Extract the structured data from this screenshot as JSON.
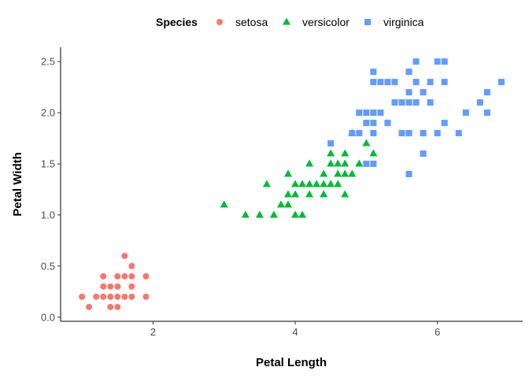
{
  "chart_data": {
    "type": "scatter",
    "xlabel": "Petal Length",
    "ylabel": "Petal Width",
    "xlim": [
      0.7,
      7.2
    ],
    "ylim": [
      -0.04,
      2.64
    ],
    "xticks": [
      2,
      4,
      6
    ],
    "yticks": [
      0.0,
      0.5,
      1.0,
      1.5,
      2.0,
      2.5
    ],
    "xtick_labels": [
      "2",
      "4",
      "6"
    ],
    "ytick_labels": [
      "0.0",
      "0.5",
      "1.0",
      "1.5",
      "2.0",
      "2.5"
    ],
    "grid": false,
    "legend": {
      "title": "Species",
      "position": "top"
    },
    "series": [
      {
        "name": "setosa",
        "color": "#F8766D",
        "marker": "circle",
        "points": [
          [
            1.0,
            0.2
          ],
          [
            1.1,
            0.1
          ],
          [
            1.2,
            0.2
          ],
          [
            1.3,
            0.2
          ],
          [
            1.3,
            0.3
          ],
          [
            1.3,
            0.4
          ],
          [
            1.4,
            0.1
          ],
          [
            1.4,
            0.2
          ],
          [
            1.4,
            0.3
          ],
          [
            1.5,
            0.1
          ],
          [
            1.5,
            0.2
          ],
          [
            1.5,
            0.3
          ],
          [
            1.5,
            0.4
          ],
          [
            1.6,
            0.2
          ],
          [
            1.6,
            0.4
          ],
          [
            1.6,
            0.6
          ],
          [
            1.7,
            0.2
          ],
          [
            1.7,
            0.3
          ],
          [
            1.7,
            0.4
          ],
          [
            1.7,
            0.5
          ],
          [
            1.9,
            0.2
          ],
          [
            1.9,
            0.4
          ]
        ]
      },
      {
        "name": "versicolor",
        "color": "#00BA38",
        "marker": "triangle",
        "points": [
          [
            3.0,
            1.1
          ],
          [
            3.3,
            1.0
          ],
          [
            3.5,
            1.0
          ],
          [
            3.6,
            1.3
          ],
          [
            3.7,
            1.0
          ],
          [
            3.8,
            1.1
          ],
          [
            3.9,
            1.1
          ],
          [
            3.9,
            1.2
          ],
          [
            3.9,
            1.4
          ],
          [
            4.0,
            1.0
          ],
          [
            4.0,
            1.2
          ],
          [
            4.0,
            1.3
          ],
          [
            4.1,
            1.0
          ],
          [
            4.1,
            1.3
          ],
          [
            4.2,
            1.2
          ],
          [
            4.2,
            1.3
          ],
          [
            4.2,
            1.5
          ],
          [
            4.3,
            1.3
          ],
          [
            4.4,
            1.2
          ],
          [
            4.4,
            1.3
          ],
          [
            4.4,
            1.4
          ],
          [
            4.5,
            1.3
          ],
          [
            4.5,
            1.5
          ],
          [
            4.5,
            1.6
          ],
          [
            4.6,
            1.3
          ],
          [
            4.6,
            1.4
          ],
          [
            4.6,
            1.5
          ],
          [
            4.7,
            1.2
          ],
          [
            4.7,
            1.4
          ],
          [
            4.7,
            1.5
          ],
          [
            4.7,
            1.6
          ],
          [
            4.8,
            1.4
          ],
          [
            4.8,
            1.8
          ],
          [
            4.9,
            1.5
          ],
          [
            5.0,
            1.7
          ],
          [
            5.1,
            1.6
          ]
        ]
      },
      {
        "name": "virginica",
        "color": "#619CFF",
        "marker": "square",
        "points": [
          [
            4.5,
            1.7
          ],
          [
            4.8,
            1.8
          ],
          [
            4.9,
            1.8
          ],
          [
            4.9,
            2.0
          ],
          [
            5.0,
            1.5
          ],
          [
            5.0,
            1.9
          ],
          [
            5.0,
            2.0
          ],
          [
            5.1,
            1.5
          ],
          [
            5.1,
            1.8
          ],
          [
            5.1,
            1.9
          ],
          [
            5.1,
            2.0
          ],
          [
            5.1,
            2.3
          ],
          [
            5.1,
            2.4
          ],
          [
            5.2,
            2.0
          ],
          [
            5.2,
            2.3
          ],
          [
            5.3,
            1.9
          ],
          [
            5.3,
            2.3
          ],
          [
            5.4,
            2.1
          ],
          [
            5.4,
            2.3
          ],
          [
            5.5,
            1.8
          ],
          [
            5.5,
            2.1
          ],
          [
            5.6,
            1.4
          ],
          [
            5.6,
            1.8
          ],
          [
            5.6,
            2.1
          ],
          [
            5.6,
            2.2
          ],
          [
            5.6,
            2.4
          ],
          [
            5.7,
            2.1
          ],
          [
            5.7,
            2.3
          ],
          [
            5.7,
            2.5
          ],
          [
            5.8,
            1.6
          ],
          [
            5.8,
            1.8
          ],
          [
            5.8,
            2.2
          ],
          [
            5.9,
            2.1
          ],
          [
            5.9,
            2.3
          ],
          [
            6.0,
            1.8
          ],
          [
            6.0,
            2.5
          ],
          [
            6.1,
            1.9
          ],
          [
            6.1,
            2.3
          ],
          [
            6.1,
            2.5
          ],
          [
            6.3,
            1.8
          ],
          [
            6.4,
            2.0
          ],
          [
            6.6,
            2.1
          ],
          [
            6.7,
            2.0
          ],
          [
            6.7,
            2.2
          ],
          [
            6.9,
            2.3
          ]
        ]
      }
    ]
  }
}
